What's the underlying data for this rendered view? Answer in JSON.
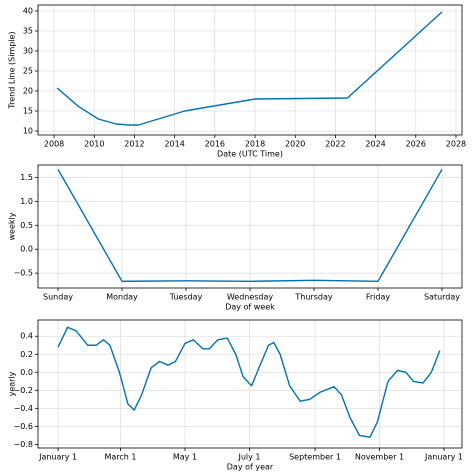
{
  "chart_data": [
    {
      "type": "line",
      "xlabel": "Date (UTC Time)",
      "ylabel": "Trend Line (Simple)",
      "color": "#0072b2",
      "grid": true,
      "x": [
        2008.15,
        2009.2,
        2010.2,
        2011.1,
        2011.7,
        2012.2,
        2014.5,
        2018.0,
        2022.6,
        2027.3
      ],
      "values": [
        20.75,
        16.2,
        13,
        11.75,
        11.5,
        11.5,
        15,
        18,
        18.25,
        39.75
      ],
      "xlim": [
        2007.2,
        2028.3
      ],
      "ylim": [
        9,
        41.5
      ],
      "xticks": [
        2008,
        2010,
        2012,
        2014,
        2016,
        2018,
        2020,
        2022,
        2024,
        2026,
        2028
      ],
      "yticks": [
        10,
        15,
        20,
        25,
        30,
        35,
        40
      ]
    },
    {
      "type": "line",
      "xlabel": "Day of week",
      "ylabel": "weekly",
      "color": "#0072b2",
      "grid": true,
      "categories": [
        "Sunday",
        "Monday",
        "Tuesday",
        "Wednesday",
        "Thursday",
        "Friday",
        "Saturday"
      ],
      "values": [
        1.67,
        -0.67,
        -0.66,
        -0.67,
        -0.65,
        -0.67,
        1.67
      ],
      "ylim": [
        -0.81,
        1.76
      ],
      "yticks": [
        {
          "value": -0.5,
          "label": "−0.5"
        },
        {
          "value": 0,
          "label": "0.0"
        },
        {
          "value": 0.5,
          "label": "0.5"
        },
        {
          "value": 1,
          "label": "1.0"
        },
        {
          "value": 1.5,
          "label": "1.5"
        }
      ]
    },
    {
      "type": "line",
      "xlabel": "Day of year",
      "ylabel": "yearly",
      "color": "#0072b2",
      "grid": true,
      "x": [
        0,
        9,
        17,
        28,
        36,
        43,
        49,
        58,
        66,
        72,
        79,
        88,
        96,
        104,
        111,
        120,
        128,
        137,
        143,
        151,
        160,
        168,
        175,
        183,
        190,
        199,
        204,
        210,
        219,
        229,
        238,
        248,
        261,
        268,
        276,
        285,
        295,
        302,
        312,
        321,
        329,
        336,
        345,
        353,
        361
      ],
      "values": [
        0.28,
        0.5,
        0.46,
        0.3,
        0.3,
        0.36,
        0.3,
        0.0,
        -0.35,
        -0.42,
        -0.25,
        0.05,
        0.12,
        0.08,
        0.12,
        0.32,
        0.36,
        0.26,
        0.26,
        0.36,
        0.38,
        0.2,
        -0.05,
        -0.15,
        0.05,
        0.3,
        0.33,
        0.2,
        -0.15,
        -0.32,
        -0.3,
        -0.22,
        -0.16,
        -0.25,
        -0.5,
        -0.7,
        -0.72,
        -0.55,
        -0.1,
        0.02,
        0.0,
        -0.1,
        -0.12,
        0.0,
        0.24
      ],
      "xlim": [
        -19,
        382
      ],
      "ylim": [
        -0.84,
        0.58
      ],
      "xticks": [
        {
          "value": 0,
          "label": "January 1"
        },
        {
          "value": 59,
          "label": "March 1"
        },
        {
          "value": 120,
          "label": "May 1"
        },
        {
          "value": 181,
          "label": "July 1"
        },
        {
          "value": 243,
          "label": "September 1"
        },
        {
          "value": 304,
          "label": "November 1"
        },
        {
          "value": 365,
          "label": "January 1"
        }
      ],
      "yticks": [
        {
          "value": -0.8,
          "label": "−0.8"
        },
        {
          "value": -0.6,
          "label": "−0.6"
        },
        {
          "value": -0.4,
          "label": "−0.4"
        },
        {
          "value": -0.2,
          "label": "−0.2"
        },
        {
          "value": 0,
          "label": "0.0"
        },
        {
          "value": 0.2,
          "label": "0.2"
        },
        {
          "value": 0.4,
          "label": "0.4"
        }
      ]
    }
  ]
}
